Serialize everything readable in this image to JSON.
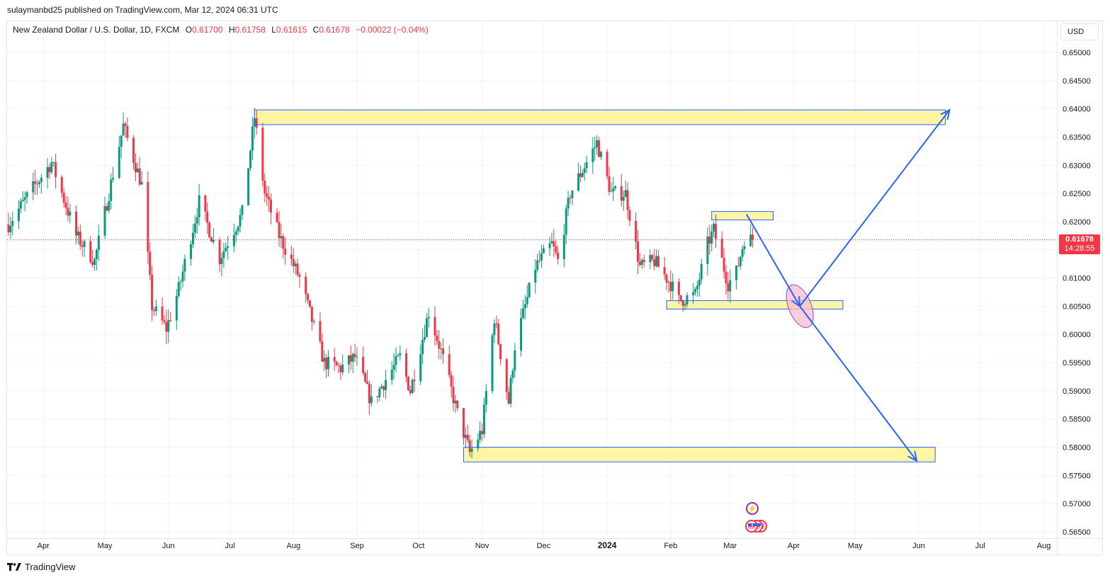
{
  "header": {
    "published_by": "sulaymanbd25 published on TradingView.com, Mar 12, 2024 06:31 UTC"
  },
  "legend": {
    "symbol": "New Zealand Dollar / U.S. Dollar, 1D, FXCM",
    "open_label": "O",
    "open": "0.61700",
    "high_label": "H",
    "high": "0.61758",
    "low_label": "L",
    "low": "0.61615",
    "close_label": "C",
    "close": "0.61678",
    "change": "−0.00022 (−0.04%)"
  },
  "currency_button": "USD",
  "price_tag": {
    "price": "0.61678",
    "countdown": "14:28:55"
  },
  "footer": {
    "brand": "TradingView"
  },
  "colors": {
    "up": "#089981",
    "down": "#f23645",
    "zone_fill": "#fff59d",
    "zone_border": "#2962ff",
    "arrow": "#2962ff",
    "grid": "#f0f3fa"
  },
  "icons": {
    "event_lightning": "lightning-icon",
    "event_flag": "us-flag-icon"
  },
  "chart_data": {
    "type": "candlestick",
    "title": "",
    "y_axis": {
      "min": 0.565,
      "max": 0.65,
      "side": "right",
      "ticks": [
        "0.65000",
        "0.64500",
        "0.64000",
        "0.63500",
        "0.63000",
        "0.62500",
        "0.62000",
        "0.61500",
        "0.61000",
        "0.60500",
        "0.60000",
        "0.59500",
        "0.59000",
        "0.58500",
        "0.58000",
        "0.57500",
        "0.57000",
        "0.56500"
      ]
    },
    "x_axis": {
      "labels": [
        "Apr",
        "May",
        "Jun",
        "Jul",
        "Aug",
        "Sep",
        "Oct",
        "Nov",
        "Dec",
        "2024",
        "Feb",
        "Mar",
        "Apr",
        "May",
        "Jun",
        "Jul",
        "Aug"
      ],
      "bold_label": "2024"
    },
    "last_price": 0.61678,
    "price_path": [
      [
        "2023-03-15",
        0.6195
      ],
      [
        "2023-03-28",
        0.6265
      ],
      [
        "2023-04-05",
        0.6305
      ],
      [
        "2023-04-17",
        0.6175
      ],
      [
        "2023-04-26",
        0.613
      ],
      [
        "2023-05-05",
        0.6285
      ],
      [
        "2023-05-10",
        0.637
      ],
      [
        "2023-05-19",
        0.6265
      ],
      [
        "2023-05-24",
        0.605
      ],
      [
        "2023-05-31",
        0.601
      ],
      [
        "2023-06-06",
        0.608
      ],
      [
        "2023-06-16",
        0.6235
      ],
      [
        "2023-06-26",
        0.6135
      ],
      [
        "2023-07-07",
        0.6215
      ],
      [
        "2023-07-13",
        0.6385
      ],
      [
        "2023-07-18",
        0.625
      ],
      [
        "2023-07-25",
        0.6175
      ],
      [
        "2023-08-04",
        0.61
      ],
      [
        "2023-08-16",
        0.595
      ],
      [
        "2023-08-24",
        0.594
      ],
      [
        "2023-08-31",
        0.596
      ],
      [
        "2023-09-08",
        0.588
      ],
      [
        "2023-09-22",
        0.596
      ],
      [
        "2023-09-27",
        0.59
      ],
      [
        "2023-10-06",
        0.604
      ],
      [
        "2023-10-12",
        0.597
      ],
      [
        "2023-10-20",
        0.586
      ],
      [
        "2023-10-26",
        0.579
      ],
      [
        "2023-11-01",
        0.583
      ],
      [
        "2023-11-07",
        0.603
      ],
      [
        "2023-11-14",
        0.588
      ],
      [
        "2023-11-17",
        0.598
      ],
      [
        "2023-11-27",
        0.612
      ],
      [
        "2023-12-05",
        0.616
      ],
      [
        "2023-12-08",
        0.613
      ],
      [
        "2023-12-14",
        0.625
      ],
      [
        "2023-12-27",
        0.634
      ],
      [
        "2024-01-03",
        0.625
      ],
      [
        "2024-01-10",
        0.625
      ],
      [
        "2024-01-17",
        0.612
      ],
      [
        "2024-01-24",
        0.613
      ],
      [
        "2024-02-01",
        0.609
      ],
      [
        "2024-02-05",
        0.606
      ],
      [
        "2024-02-13",
        0.607
      ],
      [
        "2024-02-19",
        0.616
      ],
      [
        "2024-02-22",
        0.6185
      ],
      [
        "2024-02-29",
        0.609
      ],
      [
        "2024-03-04",
        0.611
      ],
      [
        "2024-03-08",
        0.617
      ],
      [
        "2024-03-12",
        0.6168
      ]
    ],
    "zones": [
      {
        "from": "2023-07-13",
        "to": "2024-06-14",
        "low": 0.6372,
        "high": 0.6398
      },
      {
        "from": "2024-02-21",
        "to": "2024-03-22",
        "low": 0.6203,
        "high": 0.6218
      },
      {
        "from": "2024-01-30",
        "to": "2024-04-25",
        "low": 0.6045,
        "high": 0.606
      },
      {
        "from": "2023-10-23",
        "to": "2024-06-09",
        "low": 0.5774,
        "high": 0.58
      }
    ],
    "arrows": [
      {
        "from": [
          "2024-03-09",
          0.6213
        ],
        "to": [
          "2024-04-04",
          0.605
        ]
      },
      {
        "from": [
          "2024-04-04",
          0.605
        ],
        "to": [
          "2024-06-16",
          0.6398
        ]
      },
      {
        "from": [
          "2024-04-04",
          0.605
        ],
        "to": [
          "2024-05-31",
          0.5776
        ]
      }
    ],
    "highlight_ellipse": {
      "date": "2024-04-04",
      "price": 0.605
    }
  }
}
